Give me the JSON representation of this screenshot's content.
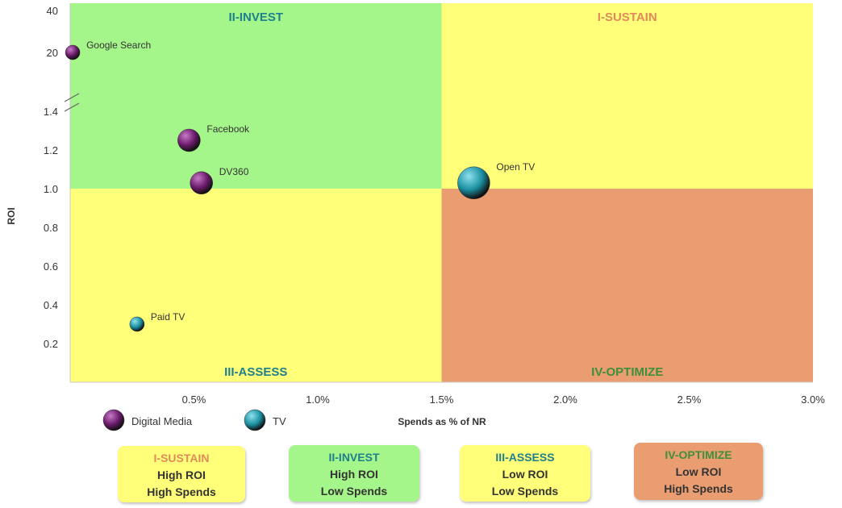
{
  "chart_data": {
    "type": "scatter",
    "title": "",
    "xlabel": "Spends as % of NR",
    "ylabel": "ROI",
    "xlim": [
      0,
      3.0
    ],
    "x_ticks": [
      {
        "value": 0.5,
        "label": "0.5%"
      },
      {
        "value": 1.0,
        "label": "1.0%"
      },
      {
        "value": 1.5,
        "label": "1.5%"
      },
      {
        "value": 2.0,
        "label": "2.0%"
      },
      {
        "value": 2.5,
        "label": "2.5%"
      },
      {
        "value": 3.0,
        "label": "3.0%"
      }
    ],
    "ylim": [
      0,
      1.4
    ],
    "y_ticks": [
      {
        "value": 0.2,
        "label": "0.2"
      },
      {
        "value": 0.4,
        "label": "0.4"
      },
      {
        "value": 0.6,
        "label": "0.6"
      },
      {
        "value": 0.8,
        "label": "0.8"
      },
      {
        "value": 1.0,
        "label": "1.0"
      },
      {
        "value": 1.2,
        "label": "1.2"
      },
      {
        "value": 1.4,
        "label": "1.4"
      }
    ],
    "y_axis_break": {
      "after": 1.4,
      "upper_ticks": [
        {
          "value": 20,
          "label": "20"
        },
        {
          "value": 40,
          "label": "40"
        }
      ]
    },
    "quadrant_split": {
      "x": 1.5,
      "y": 1.0
    },
    "quadrants": [
      {
        "label": "II-INVEST",
        "position": "top-left",
        "fill": "#a4f58a",
        "label_color": "#1f7f8c"
      },
      {
        "label": "I-SUSTAIN",
        "position": "top-right",
        "fill": "#ffff7a",
        "label_color": "#e08a5c"
      },
      {
        "label": "III-ASSESS",
        "position": "bottom-left",
        "fill": "#ffff7a",
        "label_color": "#1f7f8c"
      },
      {
        "label": "IV-OPTIMIZE",
        "position": "bottom-right",
        "fill": "#eb9d72",
        "label_color": "#3f8f3a"
      }
    ],
    "series": [
      {
        "name": "Digital Media",
        "color": "#6a1a6a",
        "points": [
          {
            "label": "Google Search",
            "x": 0.01,
            "y": 20,
            "size": "small"
          },
          {
            "label": "Facebook",
            "x": 0.48,
            "y": 1.25,
            "size": "medium"
          },
          {
            "label": "DV360",
            "x": 0.53,
            "y": 1.03,
            "size": "medium"
          }
        ]
      },
      {
        "name": "TV",
        "color": "#1a8fa0",
        "points": [
          {
            "label": "Paid TV",
            "x": 0.27,
            "y": 0.3,
            "size": "small"
          },
          {
            "label": "Open TV",
            "x": 1.63,
            "y": 1.03,
            "size": "large"
          }
        ]
      }
    ],
    "legend": {
      "placement": "bottom-left"
    },
    "key_boxes": [
      {
        "title": "I-SUSTAIN",
        "line1": "High ROI",
        "line2": "High Spends",
        "fill": "#ffff7a",
        "title_color": "#e08a5c"
      },
      {
        "title": "II-INVEST",
        "line1": "High ROI",
        "line2": "Low Spends",
        "fill": "#a4f58a",
        "title_color": "#1f7f8c"
      },
      {
        "title": "III-ASSESS",
        "line1": "Low ROI",
        "line2": "Low Spends",
        "fill": "#ffff7a",
        "title_color": "#1f7f8c"
      },
      {
        "title": "IV-OPTIMIZE",
        "line1": "Low ROI",
        "line2": "High Spends",
        "fill": "#eb9d72",
        "title_color": "#3f8f3a"
      }
    ]
  }
}
